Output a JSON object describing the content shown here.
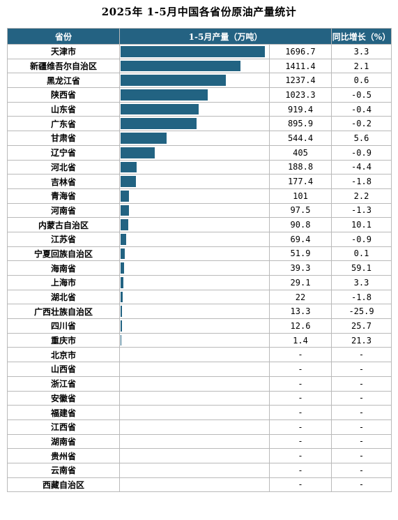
{
  "title": "2025年 1-5月中国各省份原油产量统计",
  "colors": {
    "header_bg": "#246282",
    "bar": "#226382",
    "grid": "#b9b9b9"
  },
  "chart_data": {
    "type": "table",
    "title": "2025年 1-5月中国各省份原油产量统计",
    "columns": [
      "省份",
      "1-5月产量（万吨）",
      "同比增长（%）"
    ],
    "rows": [
      {
        "province": "天津市",
        "output": "1696.7",
        "yoy": "3.3",
        "value": 1696.7
      },
      {
        "province": "新疆维吾尔自治区",
        "output": "1411.4",
        "yoy": "2.1",
        "value": 1411.4
      },
      {
        "province": "黑龙江省",
        "output": "1237.4",
        "yoy": "0.6",
        "value": 1237.4
      },
      {
        "province": "陕西省",
        "output": "1023.3",
        "yoy": "-0.5",
        "value": 1023.3
      },
      {
        "province": "山东省",
        "output": "919.4",
        "yoy": "-0.4",
        "value": 919.4
      },
      {
        "province": "广东省",
        "output": "895.9",
        "yoy": "-0.2",
        "value": 895.9
      },
      {
        "province": "甘肃省",
        "output": "544.4",
        "yoy": "5.6",
        "value": 544.4
      },
      {
        "province": "辽宁省",
        "output": "405",
        "yoy": "-0.9",
        "value": 405
      },
      {
        "province": "河北省",
        "output": "188.8",
        "yoy": "-4.4",
        "value": 188.8
      },
      {
        "province": "吉林省",
        "output": "177.4",
        "yoy": "-1.8",
        "value": 177.4
      },
      {
        "province": "青海省",
        "output": "101",
        "yoy": "2.2",
        "value": 101
      },
      {
        "province": "河南省",
        "output": "97.5",
        "yoy": "-1.3",
        "value": 97.5
      },
      {
        "province": "内蒙古自治区",
        "output": "90.8",
        "yoy": "10.1",
        "value": 90.8
      },
      {
        "province": "江苏省",
        "output": "69.4",
        "yoy": "-0.9",
        "value": 69.4
      },
      {
        "province": "宁夏回族自治区",
        "output": "51.9",
        "yoy": "0.1",
        "value": 51.9
      },
      {
        "province": "海南省",
        "output": "39.3",
        "yoy": "59.1",
        "value": 39.3
      },
      {
        "province": "上海市",
        "output": "29.1",
        "yoy": "3.3",
        "value": 29.1
      },
      {
        "province": "湖北省",
        "output": "22",
        "yoy": "-1.8",
        "value": 22
      },
      {
        "province": "广西壮族自治区",
        "output": "13.3",
        "yoy": "-25.9",
        "value": 13.3
      },
      {
        "province": "四川省",
        "output": "12.6",
        "yoy": "25.7",
        "value": 12.6
      },
      {
        "province": "重庆市",
        "output": "1.4",
        "yoy": "21.3",
        "value": 1.4
      },
      {
        "province": "北京市",
        "output": "-",
        "yoy": "-",
        "value": 0
      },
      {
        "province": "山西省",
        "output": "-",
        "yoy": "-",
        "value": 0
      },
      {
        "province": "浙江省",
        "output": "-",
        "yoy": "-",
        "value": 0
      },
      {
        "province": "安徽省",
        "output": "-",
        "yoy": "-",
        "value": 0
      },
      {
        "province": "福建省",
        "output": "-",
        "yoy": "-",
        "value": 0
      },
      {
        "province": "江西省",
        "output": "-",
        "yoy": "-",
        "value": 0
      },
      {
        "province": "湖南省",
        "output": "-",
        "yoy": "-",
        "value": 0
      },
      {
        "province": "贵州省",
        "output": "-",
        "yoy": "-",
        "value": 0
      },
      {
        "province": "云南省",
        "output": "-",
        "yoy": "-",
        "value": 0
      },
      {
        "province": "西藏自治区",
        "output": "-",
        "yoy": "-",
        "value": 0
      }
    ]
  }
}
